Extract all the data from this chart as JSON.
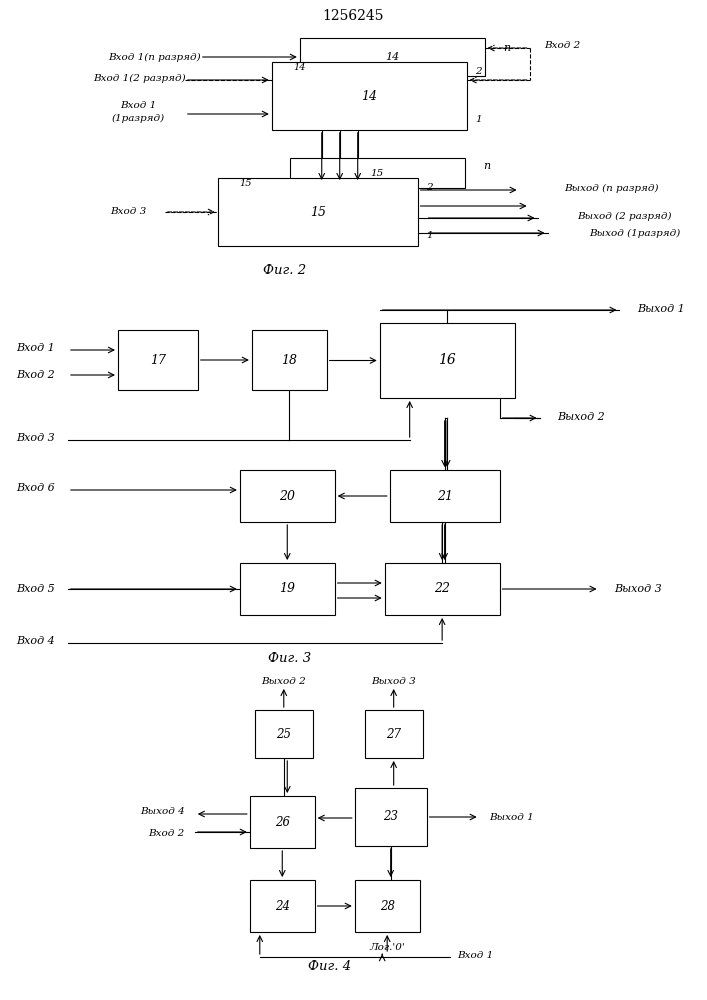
{
  "title": "1256245",
  "bg_color": "#ffffff",
  "line_color": "#000000",
  "fig2_label": "Фиг. 2",
  "fig3_label": "Фиг. 3",
  "fig4_label": "Фиг. 4"
}
